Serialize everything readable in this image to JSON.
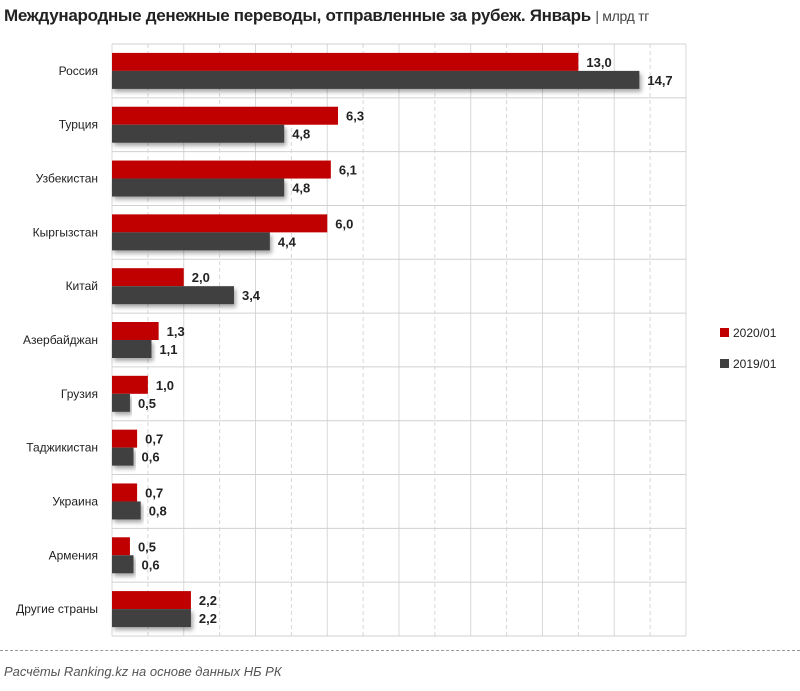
{
  "chart_data": {
    "type": "bar",
    "orientation": "horizontal",
    "title": "Международные денежные переводы, отправленные за рубеж. Январь",
    "unit": "млрд тг",
    "categories": [
      "Россия",
      "Турция",
      "Узбекистан",
      "Кыргызстан",
      "Китай",
      "Азербайджан",
      "Грузия",
      "Таджикистан",
      "Украина",
      "Армения",
      "Другие страны"
    ],
    "series": [
      {
        "name": "2020/01",
        "color": "#c00000",
        "values": [
          13.0,
          6.3,
          6.1,
          6.0,
          2.0,
          1.3,
          1.0,
          0.7,
          0.7,
          0.5,
          2.2
        ],
        "labels": [
          "13,0",
          "6,3",
          "6,1",
          "6,0",
          "2,0",
          "1,3",
          "1,0",
          "0,7",
          "0,7",
          "0,5",
          "2,2"
        ]
      },
      {
        "name": "2019/01",
        "color": "#404040",
        "values": [
          14.7,
          4.8,
          4.8,
          4.4,
          3.4,
          1.1,
          0.5,
          0.6,
          0.8,
          0.6,
          2.2
        ],
        "labels": [
          "14,7",
          "4,8",
          "4,8",
          "4,4",
          "3,4",
          "1,1",
          "0,5",
          "0,6",
          "0,8",
          "0,6",
          "2,2"
        ]
      }
    ],
    "xlim": [
      0,
      16
    ],
    "grid": true,
    "legend_position": "right"
  },
  "source": "Расчёты Ranking.kz на основе данных  НБ РК"
}
